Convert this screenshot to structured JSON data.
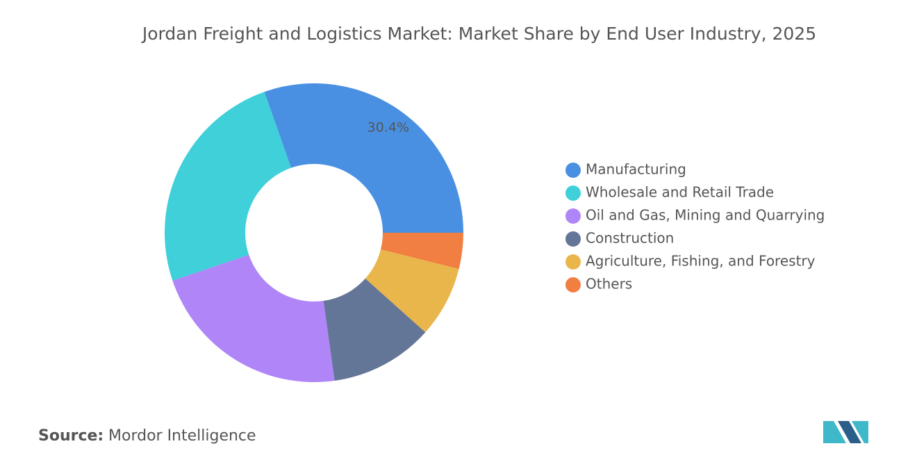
{
  "chart_data": {
    "type": "donut",
    "title": "Jordan Freight and Logistics Market: Market Share by End User Industry, 2025",
    "categories": [
      "Manufacturing",
      "Wholesale and Retail Trade",
      "Oil and Gas, Mining and Quarrying",
      "Construction",
      "Agriculture, Fishing, and Forestry",
      "Others"
    ],
    "values": [
      30.4,
      24.8,
      22.0,
      11.2,
      7.7,
      3.9
    ],
    "value_labels": [
      "30.4%",
      null,
      null,
      null,
      null,
      null
    ],
    "colors": [
      "#4a90e2",
      "#3fd0da",
      "#b085f7",
      "#647697",
      "#e9b64c",
      "#f07f41"
    ],
    "legend": "right"
  },
  "source": {
    "label": "Source:",
    "text": "Mordor Intelligence"
  }
}
